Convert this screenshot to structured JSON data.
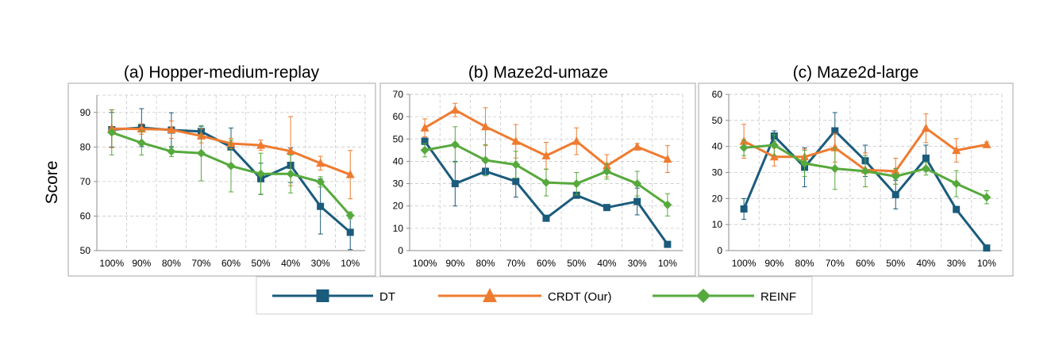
{
  "figure": {
    "ylabel": "Score",
    "colors": {
      "DT": "#1b5b7c",
      "CRDT (Our)": "#ee7b30",
      "REINF": "#56a93c"
    },
    "legend": [
      {
        "name": "DT",
        "marker": "square"
      },
      {
        "name": "CRDT (Our)",
        "marker": "triangle"
      },
      {
        "name": "REINF",
        "marker": "diamond"
      }
    ]
  },
  "chart_data": [
    {
      "type": "line",
      "title": "(a) Hopper-medium-replay",
      "xlabel": "",
      "ylabel": "Score",
      "categories": [
        "100%",
        "90%",
        "80%",
        "70%",
        "60%",
        "50%",
        "40%",
        "30%",
        "10%"
      ],
      "ylim": [
        50,
        95
      ],
      "yticks": [
        50,
        60,
        70,
        80,
        90
      ],
      "grid": true,
      "series": [
        {
          "name": "DT",
          "values": [
            85.0,
            85.6,
            84.9,
            84.5,
            80.0,
            70.8,
            74.7,
            62.8,
            55.3
          ],
          "err": [
            5.0,
            5.5,
            5.0,
            1.5,
            5.5,
            4.5,
            5.0,
            8.0,
            5.0
          ]
        },
        {
          "name": "CRDT (Our)",
          "values": [
            85.3,
            85.2,
            85.0,
            83.2,
            81.0,
            80.5,
            78.8,
            75.3,
            72.0
          ],
          "err": [
            5.5,
            1.5,
            2.5,
            2.0,
            1.5,
            1.5,
            10.0,
            2.0,
            7.0
          ]
        },
        {
          "name": "REINF",
          "values": [
            84.2,
            81.2,
            78.7,
            78.2,
            74.5,
            72.2,
            72.2,
            69.9,
            60.2
          ],
          "err": [
            6.5,
            3.5,
            1.5,
            8.0,
            7.5,
            6.0,
            5.5,
            1.5,
            1.0
          ]
        }
      ]
    },
    {
      "type": "line",
      "title": "(b) Maze2d-umaze",
      "xlabel": "",
      "ylabel": "",
      "categories": [
        "100%",
        "90%",
        "80%",
        "70%",
        "60%",
        "50%",
        "40%",
        "30%",
        "10%"
      ],
      "ylim": [
        0,
        70
      ],
      "yticks": [
        0,
        10,
        20,
        30,
        40,
        50,
        60,
        70
      ],
      "grid": true,
      "series": [
        {
          "name": "DT",
          "values": [
            49.0,
            30.0,
            35.5,
            31.0,
            14.5,
            24.8,
            19.3,
            22.0,
            2.8
          ],
          "err": [
            1.5,
            10.0,
            1.5,
            7.0,
            1.0,
            1.0,
            1.0,
            6.0,
            1.0
          ]
        },
        {
          "name": "CRDT (Our)",
          "values": [
            55.0,
            63.0,
            55.5,
            49.0,
            42.5,
            49.0,
            38.0,
            46.5,
            41.0
          ],
          "err": [
            4.0,
            3.0,
            8.5,
            7.5,
            6.0,
            6.0,
            5.0,
            1.5,
            6.0
          ]
        },
        {
          "name": "REINF",
          "values": [
            45.0,
            47.5,
            40.5,
            38.5,
            30.5,
            30.0,
            35.5,
            30.0,
            20.5
          ],
          "err": [
            3.0,
            8.0,
            7.0,
            6.0,
            6.0,
            5.0,
            3.5,
            5.5,
            5.0
          ]
        }
      ]
    },
    {
      "type": "line",
      "title": "(c) Maze2d-large",
      "xlabel": "",
      "ylabel": "",
      "categories": [
        "100%",
        "90%",
        "80%",
        "70%",
        "60%",
        "50%",
        "40%",
        "30%",
        "10%"
      ],
      "ylim": [
        0,
        60
      ],
      "yticks": [
        0,
        10,
        20,
        30,
        40,
        50,
        60
      ],
      "grid": true,
      "series": [
        {
          "name": "DT",
          "values": [
            16.0,
            44.0,
            32.0,
            46.0,
            34.5,
            21.5,
            35.5,
            15.8,
            1.0
          ],
          "err": [
            4.0,
            2.0,
            7.5,
            7.0,
            6.0,
            5.5,
            5.0,
            1.0,
            1.0
          ]
        },
        {
          "name": "CRDT (Our)",
          "values": [
            42.0,
            36.0,
            36.0,
            39.5,
            31.0,
            30.5,
            47.0,
            38.5,
            40.7
          ],
          "err": [
            6.5,
            3.5,
            3.0,
            5.5,
            6.5,
            5.0,
            5.5,
            4.5,
            1.0
          ]
        },
        {
          "name": "REINF",
          "values": [
            39.5,
            40.5,
            33.5,
            31.5,
            30.5,
            28.5,
            31.5,
            25.7,
            20.5
          ],
          "err": [
            3.0,
            4.0,
            5.0,
            8.0,
            6.0,
            3.0,
            2.5,
            5.0,
            2.5
          ]
        }
      ]
    }
  ]
}
